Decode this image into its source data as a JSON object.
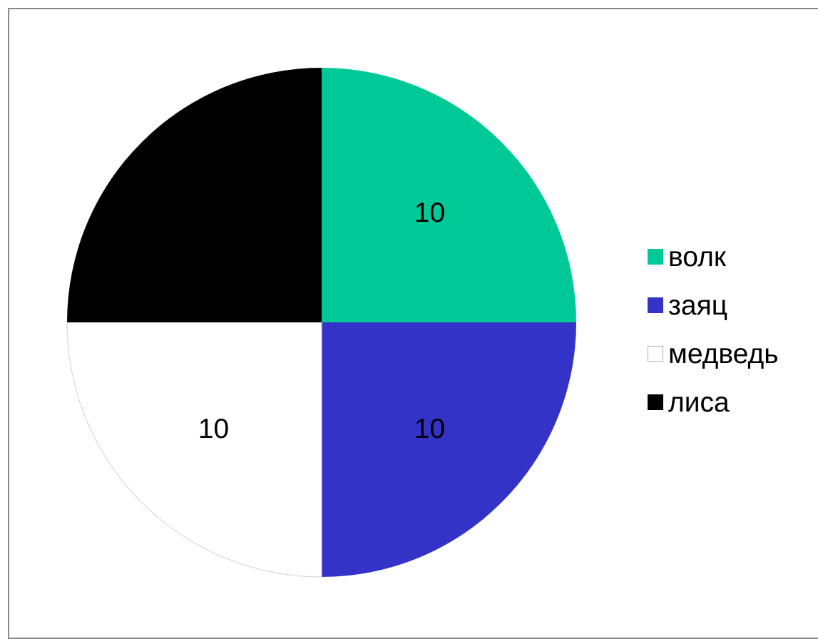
{
  "chart_data": {
    "type": "pie",
    "categories": [
      "волк",
      "заяц",
      "медведь",
      "лиса"
    ],
    "values": [
      10,
      10,
      10,
      10
    ],
    "data_labels": [
      "10",
      "10",
      "10",
      ""
    ],
    "colors": [
      "#00c896",
      "#3333c8",
      "#ffffff",
      "#000000"
    ],
    "legend_placement": "right",
    "start_angle": "12 o'clock, clockwise"
  }
}
